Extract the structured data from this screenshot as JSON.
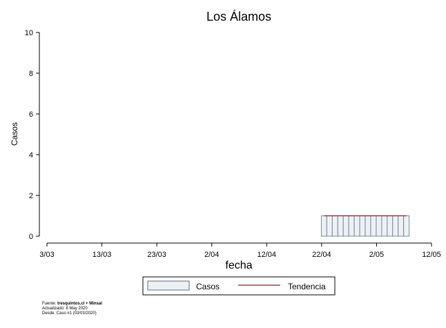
{
  "chart_data": {
    "type": "bar",
    "title": "Los Álamos",
    "xlabel": "fecha",
    "ylabel": "Casos",
    "ylim": [
      0,
      10
    ],
    "yticks": [
      "0",
      "2",
      "4",
      "6",
      "8",
      "10"
    ],
    "xticks": [
      "3/03",
      "13/03",
      "23/03",
      "2/04",
      "12/04",
      "22/04",
      "2/05",
      "12/05"
    ],
    "x_start": "2020-03-03",
    "x_end": "2020-05-12",
    "grid": false,
    "legend_position": "bottom",
    "series": [
      {
        "name": "Casos",
        "type": "bar",
        "color": "#eef1f4",
        "edge_color": "#5a7088",
        "x": [
          "2020-04-22",
          "2020-04-23",
          "2020-04-24",
          "2020-04-25",
          "2020-04-26",
          "2020-04-27",
          "2020-04-28",
          "2020-04-29",
          "2020-04-30",
          "2020-05-01",
          "2020-05-02",
          "2020-05-03",
          "2020-05-04",
          "2020-05-05",
          "2020-05-06",
          "2020-05-07"
        ],
        "values": [
          1,
          1,
          1,
          1,
          1,
          1,
          1,
          1,
          1,
          1,
          1,
          1,
          1,
          1,
          1,
          1
        ]
      },
      {
        "name": "Tendencia",
        "type": "line",
        "color": "#8b1a2b",
        "x": [
          "2020-04-22",
          "2020-04-23",
          "2020-04-24",
          "2020-04-25",
          "2020-04-26",
          "2020-04-27",
          "2020-04-28",
          "2020-04-29",
          "2020-04-30",
          "2020-05-01",
          "2020-05-02",
          "2020-05-03",
          "2020-05-04",
          "2020-05-05",
          "2020-05-06",
          "2020-05-07"
        ],
        "values": [
          1,
          1,
          1,
          1,
          1,
          1,
          1,
          1,
          1,
          1,
          1,
          1,
          1,
          1,
          1,
          1
        ]
      }
    ]
  },
  "source": {
    "prefix": "Fuente: ",
    "bold": "tresquintos.cl + Minsal",
    "updated": "Actualizado: 8 May 2020",
    "since": "Desde: Caso #1  (03/03/2020)"
  }
}
